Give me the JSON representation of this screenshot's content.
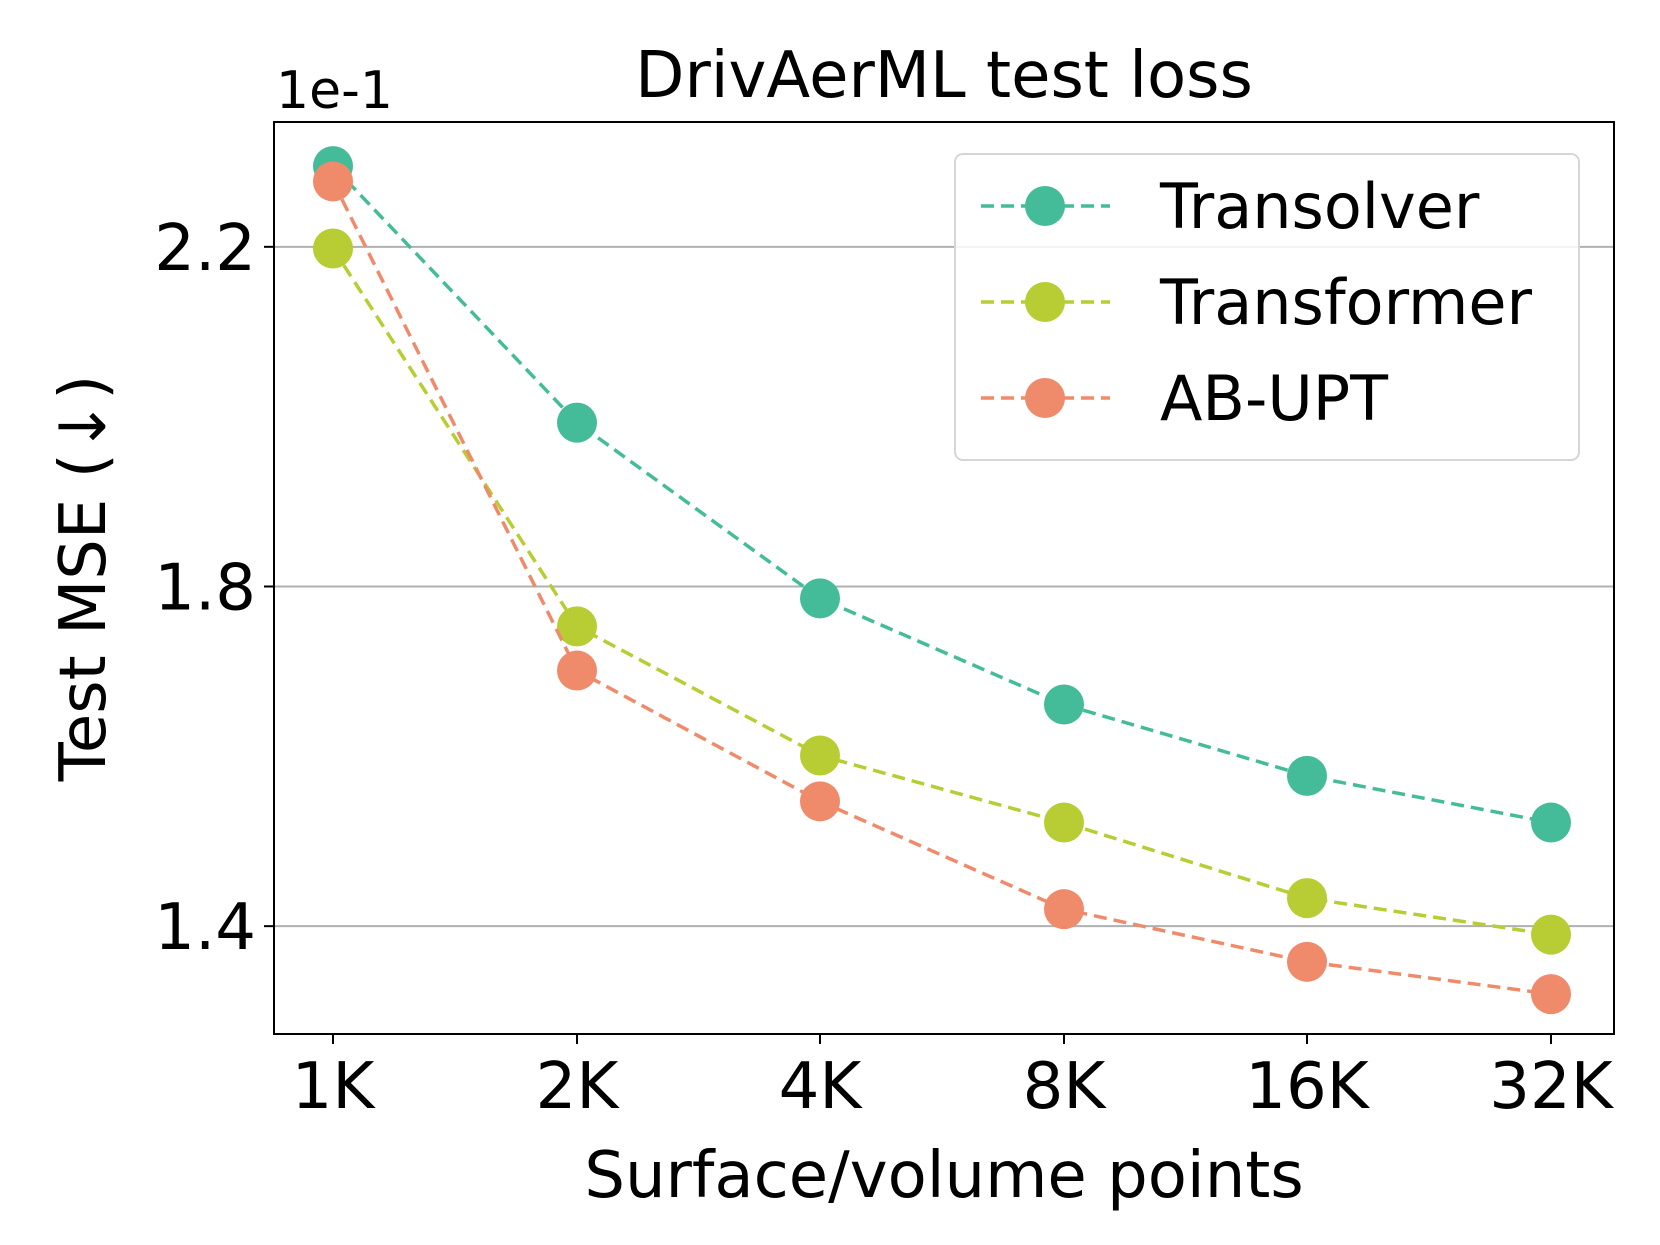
{
  "chart_data": {
    "type": "line",
    "title": "DrivAerML test loss",
    "xlabel": "Surface/volume points",
    "ylabel": "Test MSE (↓)",
    "y_scale_label": "1e-1",
    "categories": [
      "1K",
      "2K",
      "4K",
      "8K",
      "16K",
      "32K"
    ],
    "yticks": [
      1.4,
      1.8,
      2.2
    ],
    "ytick_labels": [
      "1.4",
      "1.8",
      "2.2"
    ],
    "ylim": [
      1.273,
      2.347
    ],
    "grid": "horizontal",
    "legend_position": "top-right",
    "series": [
      {
        "name": "Transolver",
        "color": "#45bc99",
        "values": [
          2.295,
          1.993,
          1.786,
          1.661,
          1.577,
          1.522
        ]
      },
      {
        "name": "Transformer",
        "color": "#b8cc33",
        "values": [
          2.198,
          1.753,
          1.601,
          1.522,
          1.433,
          1.39
        ]
      },
      {
        "name": "AB-UPT",
        "color": "#ef8a6a",
        "values": [
          2.277,
          1.701,
          1.547,
          1.42,
          1.358,
          1.32
        ]
      }
    ]
  }
}
